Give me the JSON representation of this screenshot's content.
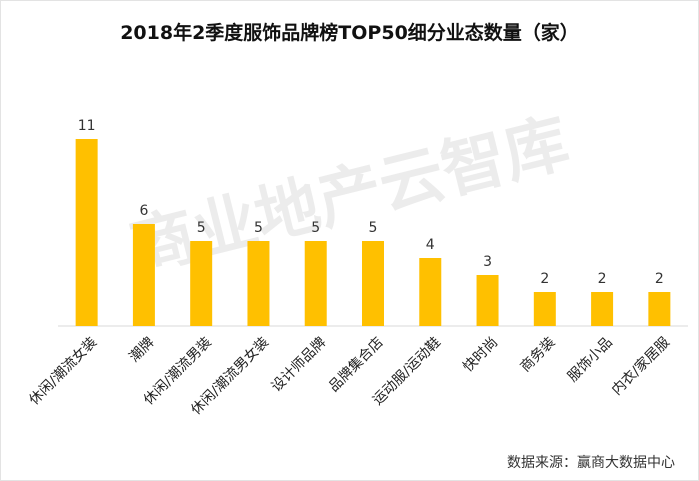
{
  "chart_data": {
    "type": "bar",
    "title": "2018年2季度服饰品牌榜TOP50细分业态数量（家）",
    "categories": [
      "休闲/潮流女装",
      "潮牌",
      "休闲/潮流男装",
      "休闲/潮流男女装",
      "设计师品牌",
      "品牌集合店",
      "运动服/运动鞋",
      "快时尚",
      "商务装",
      "服饰小品",
      "内衣/家居服"
    ],
    "values": [
      11,
      6,
      5,
      5,
      5,
      5,
      4,
      3,
      2,
      2,
      2
    ],
    "xlabel": "",
    "ylabel": "",
    "ylim": [
      0,
      11
    ],
    "grid": false,
    "legend": "none",
    "bar_color": "#FFC000",
    "axis_color": "#D9D9D9"
  },
  "watermark": "商业地产云智库",
  "source": "数据来源：赢商大数据中心"
}
